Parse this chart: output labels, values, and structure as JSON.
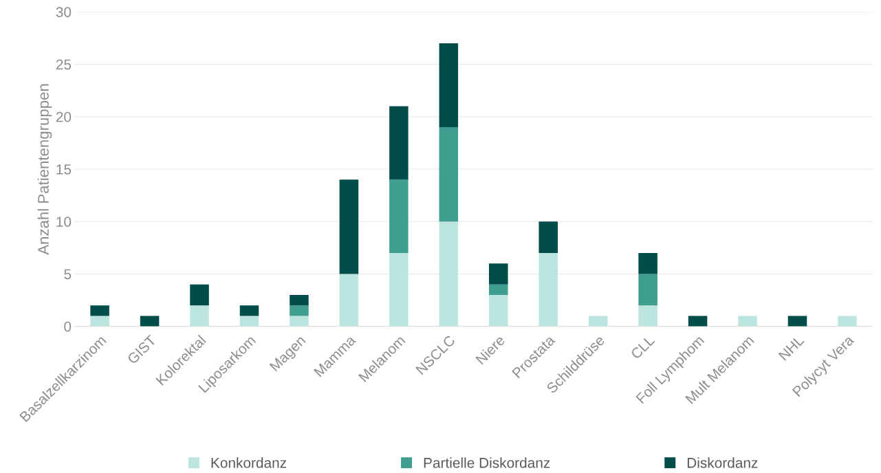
{
  "chart_data": {
    "type": "bar",
    "stacked": true,
    "ylabel": "Anzahl Patientengruppen",
    "categories": [
      "Basalzellkarzinom",
      "GIST",
      "Kolorektal",
      "Liposarkom",
      "Magen",
      "Mamma",
      "Melanom",
      "NSCLC",
      "Niere",
      "Prostata",
      "Schilddrüse",
      "CLL",
      "Foll Lymphom",
      "Mult Melanom",
      "NHL",
      "Polycyt Vera"
    ],
    "series": [
      {
        "name": "Konkordanz",
        "color": "#bde5df",
        "values": [
          1,
          0,
          2,
          1,
          1,
          5,
          7,
          10,
          3,
          7,
          1,
          2,
          0,
          1,
          0,
          1
        ]
      },
      {
        "name": "Partielle Diskordanz",
        "color": "#409e90",
        "values": [
          0,
          0,
          0,
          0,
          1,
          0,
          7,
          9,
          1,
          0,
          0,
          3,
          0,
          0,
          0,
          0
        ]
      },
      {
        "name": "Diskordanz",
        "color": "#004d4a",
        "values": [
          1,
          1,
          2,
          1,
          1,
          9,
          7,
          8,
          2,
          3,
          0,
          2,
          1,
          0,
          1,
          0
        ]
      }
    ],
    "ylim": [
      0,
      30
    ],
    "yticks": [
      0,
      5,
      10,
      15,
      20,
      25,
      30
    ],
    "grid": "y",
    "legend": "bottom"
  }
}
